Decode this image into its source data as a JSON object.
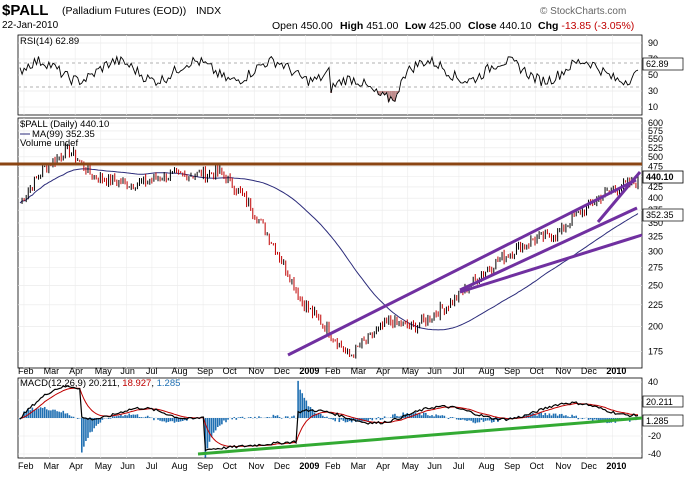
{
  "header": {
    "symbol": "$PALL",
    "name": "(Palladium Futures (EOD))",
    "exchange": "INDX",
    "watermark": "© StockCharts.com",
    "date": "22-Jan-2010",
    "open_label": "Open",
    "open": "450.00",
    "high_label": "High",
    "high": "451.00",
    "low_label": "Low",
    "low": "425.00",
    "close_label": "Close",
    "close": "440.10",
    "chg_label": "Chg",
    "chg": "-13.85 (-3.05%)",
    "chg_color": "#c00000"
  },
  "rsi": {
    "label": "RSI(14)",
    "value": "62.89",
    "ticks": [
      "90",
      "70",
      "50",
      "30",
      "10"
    ]
  },
  "price": {
    "legend_main": "$PALL (Daily) 440.10",
    "legend_ma": "MA(99) 352.35",
    "legend_vol": "Volume undef",
    "ticks": [
      "600",
      "575",
      "550",
      "525",
      "500",
      "475",
      "450",
      "425",
      "400",
      "375",
      "350",
      "325",
      "300",
      "275",
      "250",
      "225",
      "200",
      "175"
    ],
    "last_price": "440.10",
    "ma_value": "352.35"
  },
  "macd": {
    "label": "MACD(12,26,9)",
    "macd_val": "20.211",
    "signal_val": "18.927",
    "hist_val": "1.285",
    "ticks": [
      "40",
      "20",
      "0",
      "-20",
      "-40"
    ],
    "macd_color": "#000000",
    "signal_color": "#c00000",
    "hist_color": "#1f6fb2"
  },
  "x_axis": {
    "labels": [
      "Feb",
      "Mar",
      "Apr",
      "May",
      "Jun",
      "Jul",
      "Aug",
      "Sep",
      "Oct",
      "Nov",
      "Dec",
      "2009",
      "Feb",
      "Mar",
      "Apr",
      "May",
      "Jun",
      "Jul",
      "Aug",
      "Sep",
      "Oct",
      "Nov",
      "Dec",
      "2010"
    ]
  },
  "colors": {
    "resistance": "#8b4513",
    "trendline_purple": "#7030a0",
    "trendline_green": "#33aa33",
    "ma_line": "#2b2b7a",
    "bar_up": "#000000",
    "bar_down": "#c00000"
  }
}
